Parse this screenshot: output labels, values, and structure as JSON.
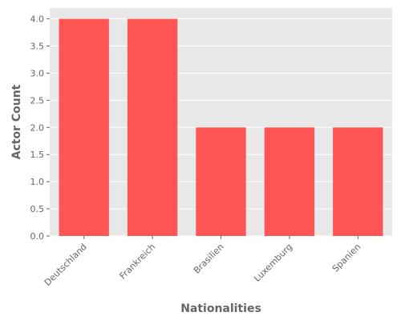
{
  "chart_data": {
    "type": "bar",
    "categories": [
      "Deutschland",
      "Frankreich",
      "Brasilien",
      "Luxemburg",
      "Spanien"
    ],
    "values": [
      4,
      4,
      2,
      2,
      2
    ],
    "xlabel": "Nationalities",
    "ylabel": "Actor Count",
    "ylim": [
      0,
      4.2
    ],
    "yticks": [
      "0.0",
      "0.5",
      "1.0",
      "1.5",
      "2.0",
      "2.5",
      "3.0",
      "3.5",
      "4.0"
    ],
    "grid": true,
    "colors": {
      "bar": "#ff5555",
      "panel": "#e8e8e8",
      "grid": "#ffffff",
      "text": "#666666"
    }
  }
}
